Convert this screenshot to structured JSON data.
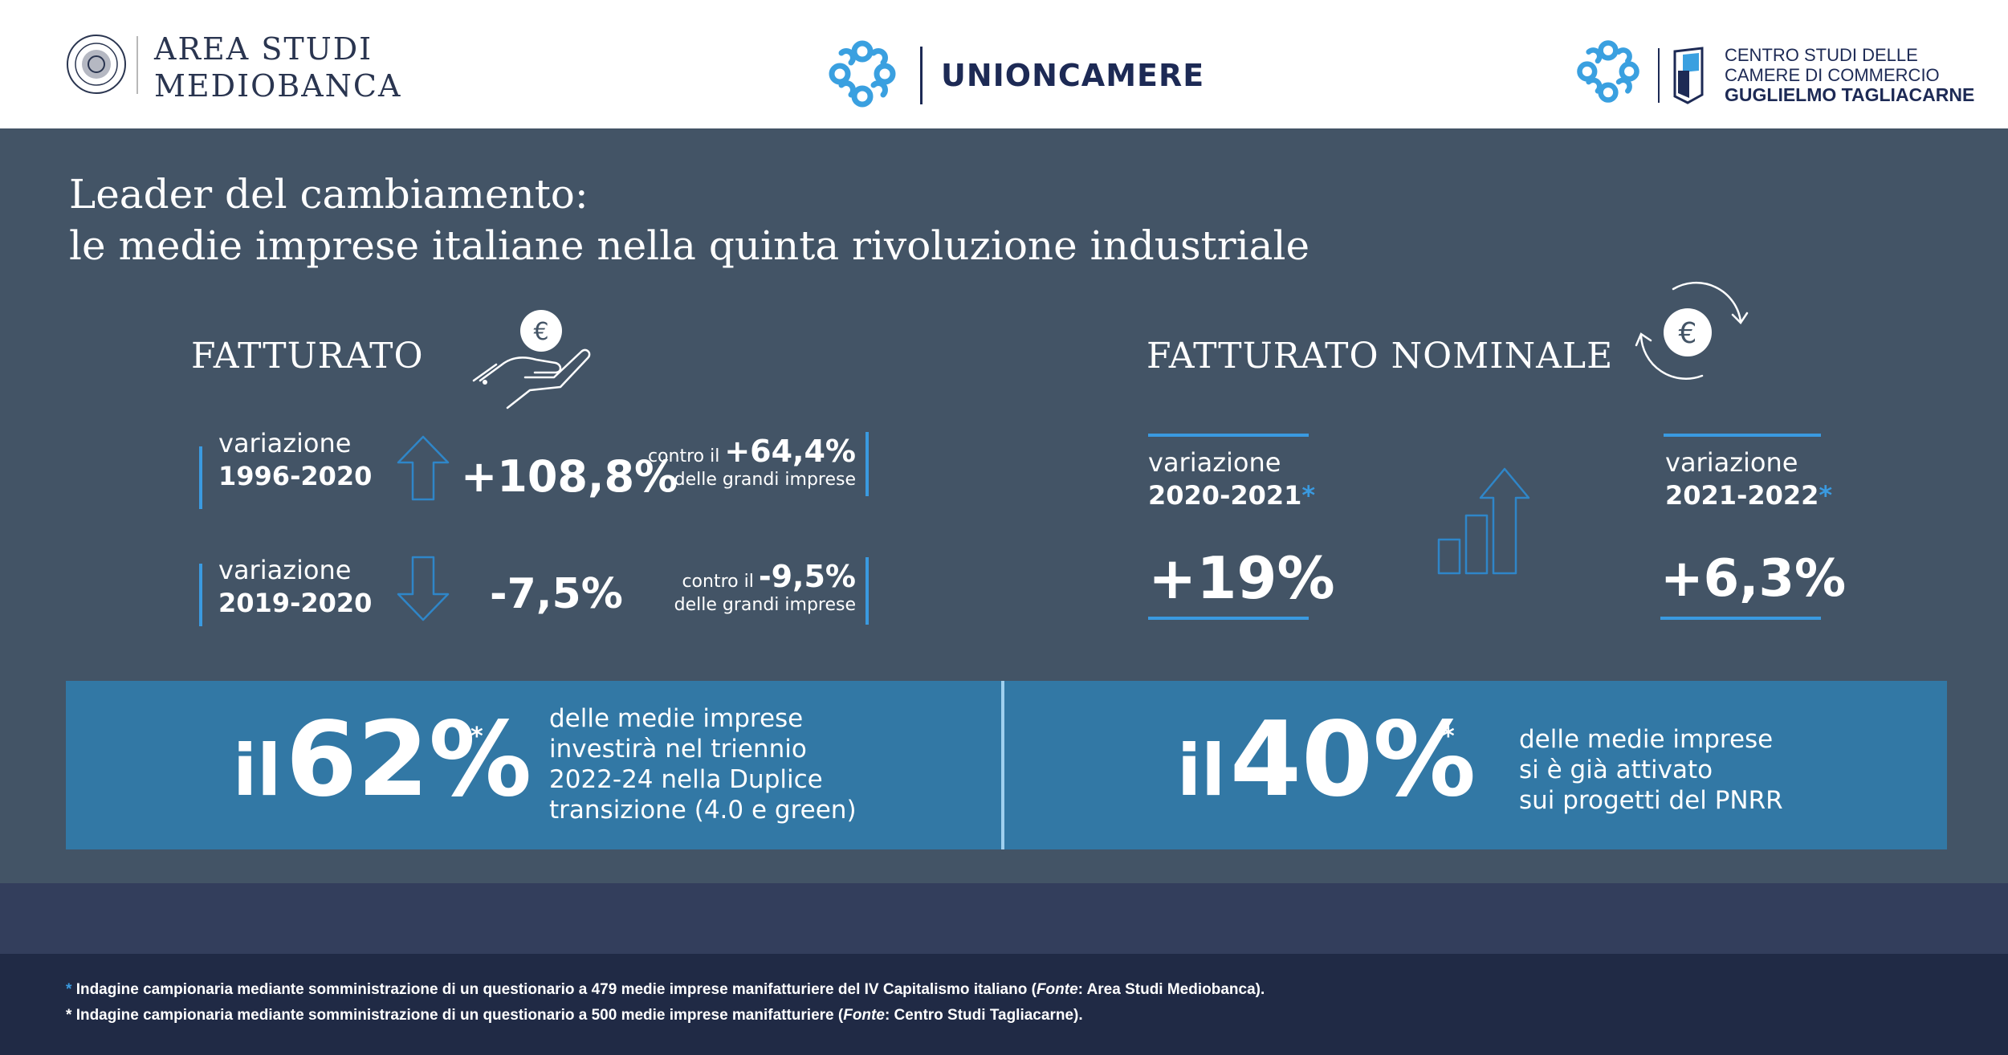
{
  "header": {
    "logo_left": {
      "line1": "AREA STUDI",
      "line2": "MEDIOBANCA"
    },
    "logo_center": {
      "name": "UNIONCAMERE"
    },
    "logo_right": {
      "line1": "CENTRO STUDI DELLE",
      "line2": "CAMERE DI COMMERCIO",
      "line3": "GUGLIELMO TAGLIACARNE"
    }
  },
  "title": {
    "line1": "Leader del cambiamento:",
    "line2": "le medie imprese italiane nella quinta rivoluzione industriale"
  },
  "fatturato": {
    "heading": "FATTURATO",
    "icon": "hand-euro-coin-icon",
    "rows": [
      {
        "label": "variazione",
        "period": "1996-2020",
        "arrow": "arrow-up-icon",
        "value": "+108,8%",
        "contro": "contro il",
        "contro_value": "+64,4%",
        "contro_sub": "delle grandi imprese"
      },
      {
        "label": "variazione",
        "period": "2019-2020",
        "arrow": "arrow-down-icon",
        "value": "-7,5%",
        "contro": "contro il",
        "contro_value": "-9,5%",
        "contro_sub": "delle grandi imprese"
      }
    ]
  },
  "fatturato_nominale": {
    "heading": "FATTURATO NOMINALE",
    "icon": "euro-circular-arrows-icon",
    "growth_icon": "bar-growth-arrow-icon",
    "items": [
      {
        "label": "variazione",
        "period": "2020-2021",
        "asterisk": "*",
        "value": "+19%"
      },
      {
        "label": "variazione",
        "period": "2021-2022",
        "asterisk": "*",
        "value": "+6,3%"
      }
    ]
  },
  "boxes": [
    {
      "prefix": "il",
      "percent": "62%",
      "asterisk": "*",
      "lines": [
        "delle medie imprese",
        "investirà nel triennio",
        "2022-24 nella Duplice",
        "transizione (4.0 e green)"
      ]
    },
    {
      "prefix": "il",
      "percent": "40%",
      "asterisk": "*",
      "lines": [
        "delle medie imprese",
        "si è già attivato",
        "sui progetti del PNRR"
      ]
    }
  ],
  "footnotes": [
    {
      "asterisk": "*",
      "text_before": "Indagine campionaria mediante somministrazione di un questionario a 479 medie imprese manifatturiere del IV Capitalismo italiano (",
      "fonte": "Fonte",
      "text_after": ": Area Studi Mediobanca)."
    },
    {
      "asterisk": "*",
      "text_before": "Indagine campionaria mediante somministrazione di un questionario a 500 medie imprese manifatturiere (",
      "fonte": "Fonte",
      "text_after": ": Centro Studi Tagliacarne)."
    }
  ],
  "colors": {
    "panel": "#435466",
    "accent_blue": "#3a9ae0",
    "box_blue": "#3278a5",
    "band": "#333e5c",
    "footer": "#202a45",
    "navy": "#1d2a55"
  }
}
